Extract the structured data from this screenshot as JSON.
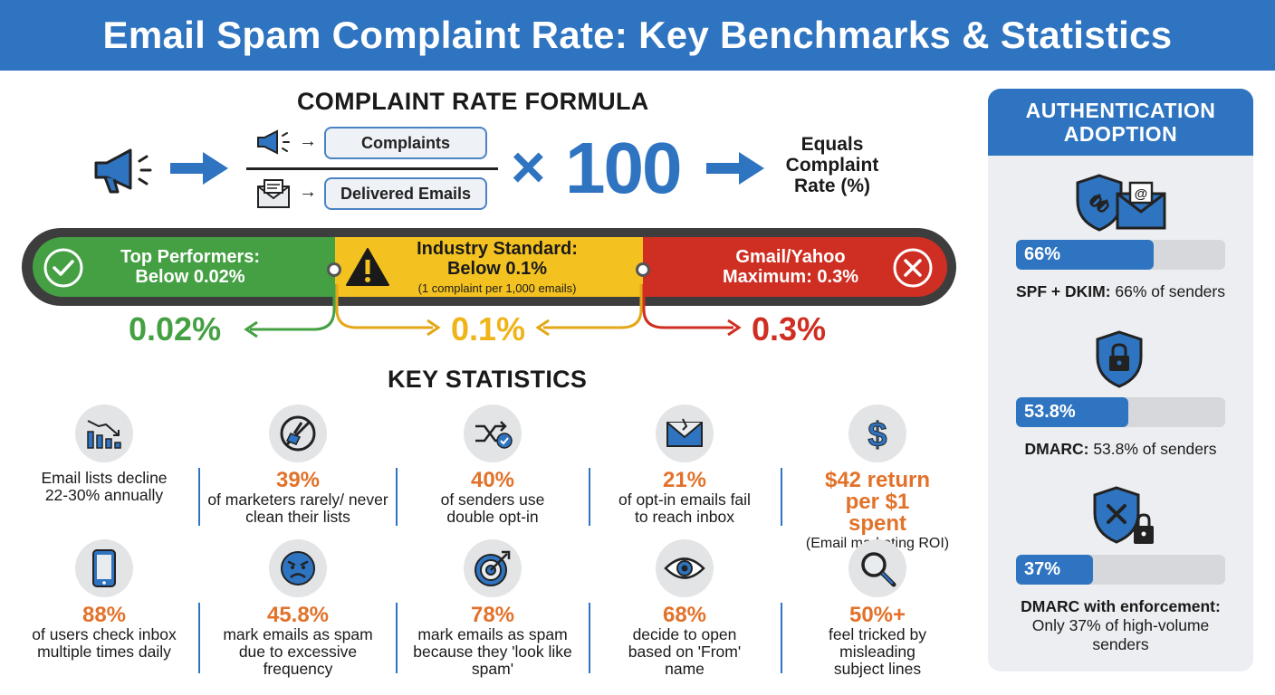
{
  "title": "Email Spam Complaint Rate: Key Benchmarks & Statistics",
  "formula": {
    "heading": "COMPLAINT RATE FORMULA",
    "numerator": "Complaints",
    "denominator": "Delivered Emails",
    "multiplier_symbol": "×",
    "multiplier": "100",
    "result": "Equals Complaint Rate (%)"
  },
  "benchmarks": {
    "segments": [
      {
        "label_line1": "Top Performers:",
        "label_line2": "Below 0.02%",
        "color": "#44a043",
        "value": "0.02%"
      },
      {
        "label_line1": "Industry Standard:",
        "label_line2": "Below 0.1%",
        "note": "(1 complaint per 1,000 emails)",
        "color": "#f4c220",
        "value": "0.1%"
      },
      {
        "label_line1": "Gmail/Yahoo",
        "label_line2": "Maximum: 0.3%",
        "color": "#cf2e22",
        "value": "0.3%"
      }
    ]
  },
  "key_statistics": {
    "heading": "KEY STATISTICS",
    "items": [
      {
        "icon": "declining-chart-icon",
        "big": "",
        "text": "Email lists decline 22-30% annually"
      },
      {
        "icon": "no-cleaning-icon",
        "big": "39%",
        "text": "of marketers rarely/ never clean their lists"
      },
      {
        "icon": "shuffle-check-icon",
        "big": "40%",
        "text": "of senders use double opt-in"
      },
      {
        "icon": "broken-envelope-icon",
        "big": "21%",
        "text": "of opt-in emails fail to reach inbox"
      },
      {
        "icon": "dollar-icon",
        "big": "$42 return per $1 spent",
        "text": "(Email marketing ROI)"
      },
      {
        "icon": "smartphone-icon",
        "big": "88%",
        "text": "of users check inbox multiple times daily"
      },
      {
        "icon": "angry-face-icon",
        "big": "45.8%",
        "text": "mark emails as spam due to excessive frequency"
      },
      {
        "icon": "target-icon",
        "big": "78%",
        "text": "mark emails as spam because they 'look like spam'"
      },
      {
        "icon": "eye-icon",
        "big": "68%",
        "text": "decide to open based on 'From' name"
      },
      {
        "icon": "magnifier-icon",
        "big": "50%+",
        "text": "feel tricked by misleading subject lines"
      }
    ]
  },
  "authentication": {
    "heading": "AUTHENTICATION ADOPTION",
    "bars": [
      {
        "icon": "shield-envelope-icon",
        "value_label": "66%",
        "fraction": 0.66,
        "caption_bold": "SPF + DKIM:",
        "caption": " 66% of senders"
      },
      {
        "icon": "shield-lock-icon",
        "value_label": "53.8%",
        "fraction": 0.538,
        "caption_bold": "DMARC:",
        "caption": " 53.8% of senders"
      },
      {
        "icon": "shield-x-lock-icon",
        "value_label": "37%",
        "fraction": 0.37,
        "caption_bold": "DMARC with enforcement:",
        "caption": "Only 37% of high-volume senders"
      }
    ]
  }
}
